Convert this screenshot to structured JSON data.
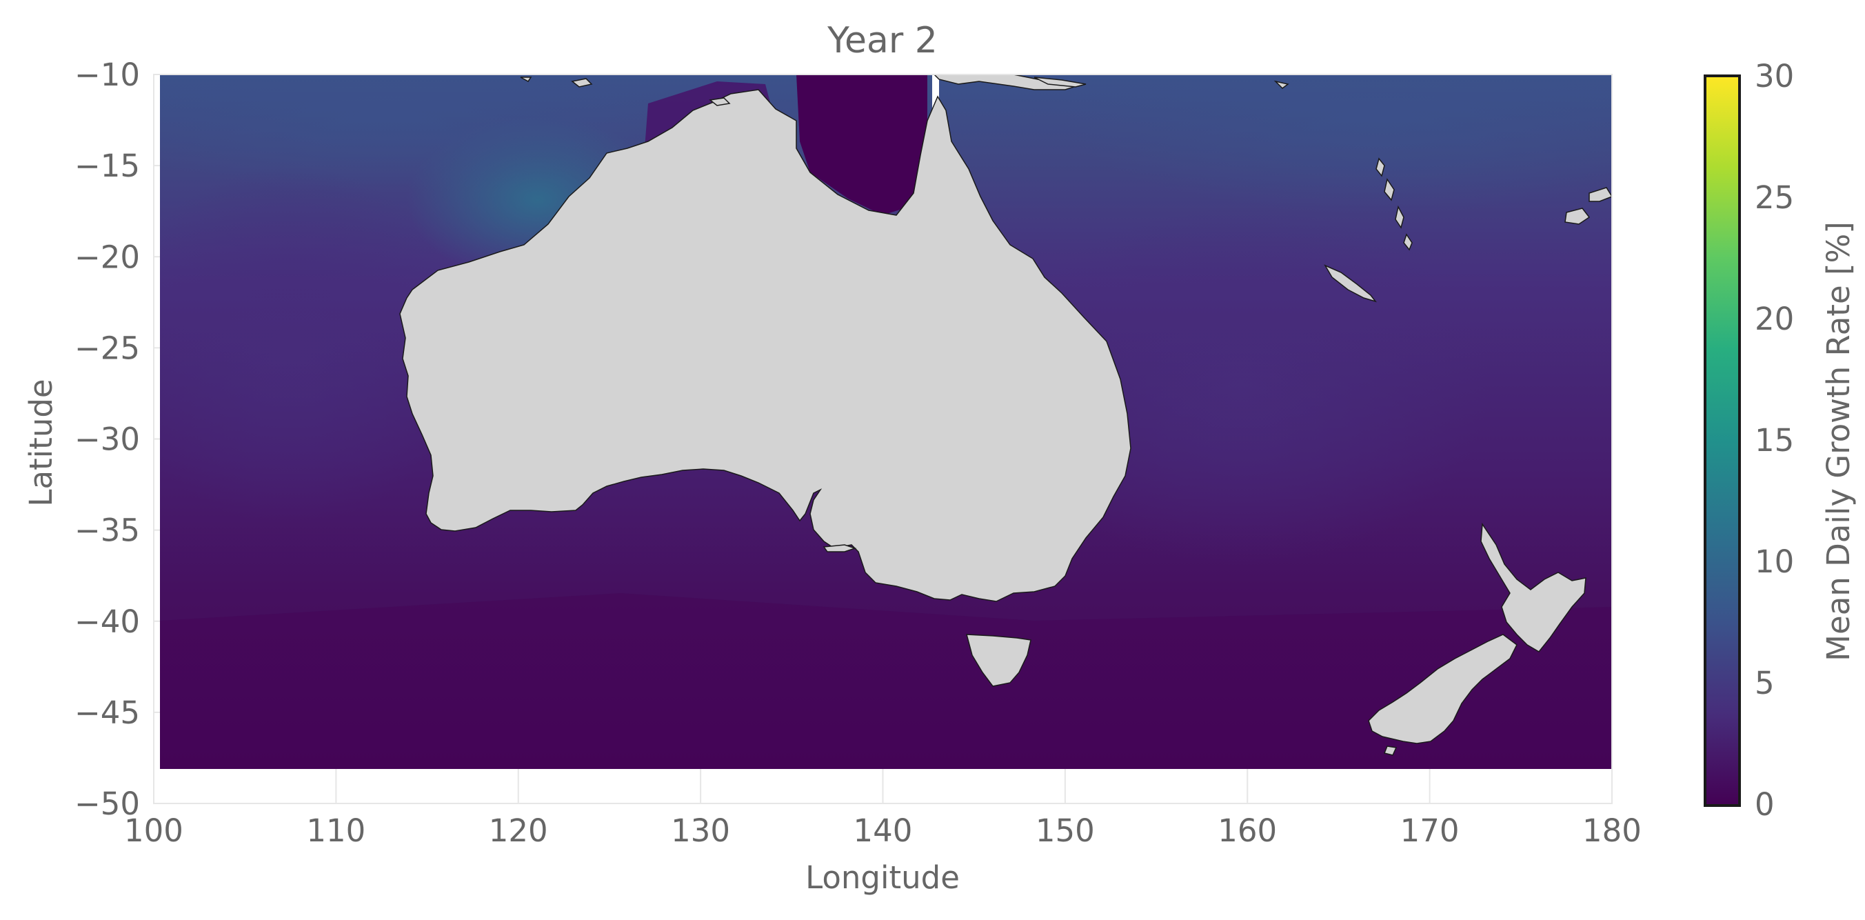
{
  "figure": {
    "title": "Year 2",
    "xlabel": "Longitude",
    "ylabel": "Latitude",
    "colorbar_label": "Mean Daily Growth Rate [%]"
  },
  "chart_data": {
    "type": "heatmap",
    "title": "Year 2",
    "xlabel": "Longitude",
    "ylabel": "Latitude",
    "xlim": [
      100,
      180
    ],
    "ylim": [
      -50,
      -10
    ],
    "data_extent": {
      "lon": [
        100.3,
        180
      ],
      "lat": [
        -48.2,
        -10
      ]
    },
    "x_ticks": [
      100,
      110,
      120,
      130,
      140,
      150,
      160,
      170,
      180
    ],
    "y_ticks": [
      -10,
      -15,
      -20,
      -25,
      -30,
      -35,
      -40,
      -45,
      -50
    ],
    "x_tick_labels": [
      "100",
      "110",
      "120",
      "130",
      "140",
      "150",
      "160",
      "170",
      "180"
    ],
    "y_tick_labels": [
      "−10",
      "−15",
      "−20",
      "−25",
      "−30",
      "−35",
      "−40",
      "−45",
      "−50"
    ],
    "grid": true,
    "colormap": "viridis",
    "colorbar": {
      "label": "Mean Daily Growth Rate [%]",
      "range": [
        0,
        30
      ],
      "ticks": [
        0,
        5,
        10,
        15,
        20,
        25,
        30
      ],
      "tick_labels": [
        "0",
        "5",
        "10",
        "15",
        "20",
        "25",
        "30"
      ],
      "stops": [
        "#440154",
        "#472d7b",
        "#3b528b",
        "#2c728e",
        "#21918c",
        "#28ae80",
        "#5ec962",
        "#addc30",
        "#fde725"
      ]
    },
    "land_color": "#d3d3d3",
    "field_samples": [
      {
        "lon": 101,
        "lat": -11,
        "value": 5.5
      },
      {
        "lon": 115,
        "lat": -13,
        "value": 6.5
      },
      {
        "lon": 121,
        "lat": -16,
        "value": 9.0
      },
      {
        "lon": 128,
        "lat": -11,
        "value": 5.0
      },
      {
        "lon": 137,
        "lat": -14,
        "value": 0.5
      },
      {
        "lon": 160,
        "lat": -12,
        "value": 6.5
      },
      {
        "lon": 175,
        "lat": -12,
        "value": 7.0
      },
      {
        "lon": 165,
        "lat": -20,
        "value": 4.5
      },
      {
        "lon": 105,
        "lat": -25,
        "value": 3.5
      },
      {
        "lon": 160,
        "lat": -30,
        "value": 4.0
      },
      {
        "lon": 110,
        "lat": -38,
        "value": 2.0
      },
      {
        "lon": 140,
        "lat": -45,
        "value": 0.5
      },
      {
        "lon": 170,
        "lat": -47,
        "value": 0.5
      }
    ],
    "landmasses": [
      "Australia",
      "Tasmania",
      "New Zealand North Island",
      "New Zealand South Island",
      "New Caledonia",
      "New Guinea (southern coast)",
      "Vanuatu",
      "Fiji"
    ]
  }
}
